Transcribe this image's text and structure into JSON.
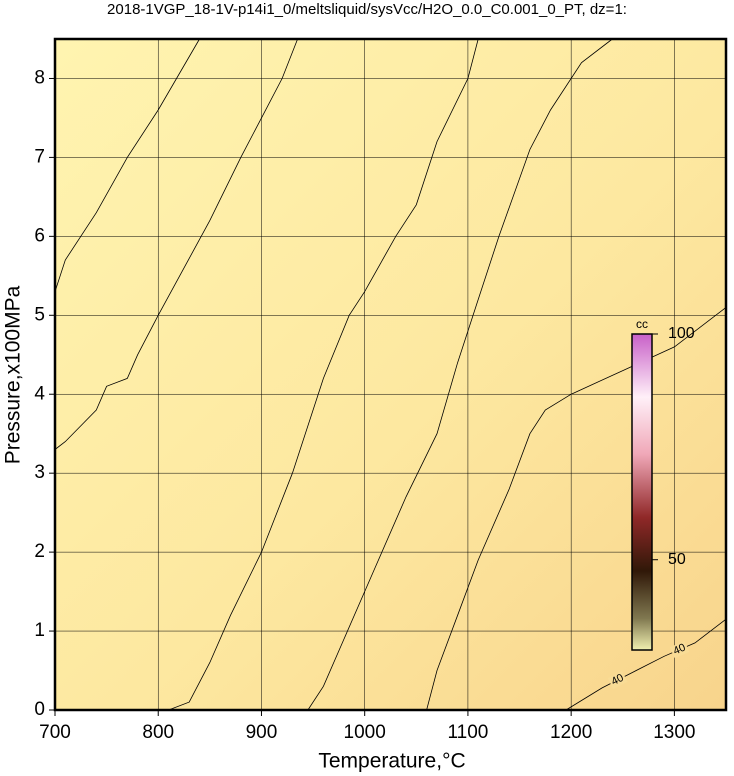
{
  "chart_data": {
    "type": "contour",
    "title": "2018-1VGP_18-1V-p14i1_0/meltsliquid/sysVcc/H2O_0.0_C0.001_0_PT, dz=1:",
    "x_label": "Temperature,°C",
    "y_label": "Pressure,x100MPa",
    "xlim": [
      700,
      1350
    ],
    "ylim": [
      0,
      8.5
    ],
    "xticks": [
      700,
      800,
      900,
      1000,
      1100,
      1200,
      1300
    ],
    "yticks": [
      0,
      1,
      2,
      3,
      4,
      5,
      6,
      7,
      8
    ],
    "grid": true,
    "contours": [
      {
        "x": [
          700,
          710,
          740,
          770,
          800,
          840
        ],
        "y": [
          5.3,
          5.7,
          6.3,
          7.0,
          7.6,
          8.5
        ]
      },
      {
        "x": [
          700,
          710,
          740,
          750,
          770,
          780,
          800,
          850,
          880,
          900,
          920,
          935
        ],
        "y": [
          3.3,
          3.4,
          3.8,
          4.1,
          4.2,
          4.5,
          5.0,
          6.2,
          7.0,
          7.5,
          8.0,
          8.5
        ]
      },
      {
        "x": [
          810,
          830,
          850,
          870,
          900,
          930,
          960,
          985,
          1000,
          1030,
          1050,
          1070,
          1100,
          1110
        ],
        "y": [
          0,
          0.1,
          0.6,
          1.2,
          2.0,
          3.0,
          4.2,
          5.0,
          5.3,
          6.0,
          6.4,
          7.2,
          8.0,
          8.5
        ]
      },
      {
        "x": [
          945,
          960,
          980,
          1010,
          1040,
          1070,
          1090,
          1110,
          1130,
          1160,
          1180,
          1210,
          1240
        ],
        "y": [
          0,
          0.3,
          0.9,
          1.8,
          2.7,
          3.5,
          4.4,
          5.2,
          6.0,
          7.1,
          7.6,
          8.2,
          8.5
        ]
      },
      {
        "x": [
          1060,
          1070,
          1090,
          1110,
          1140,
          1160,
          1175,
          1200,
          1250,
          1300,
          1350
        ],
        "y": [
          0,
          0.5,
          1.2,
          1.9,
          2.8,
          3.5,
          3.8,
          4.0,
          4.3,
          4.6,
          5.1
        ]
      },
      {
        "x": [
          1195,
          1210,
          1230,
          1260,
          1290,
          1320,
          1350
        ],
        "y": [
          0,
          0.12,
          0.28,
          0.48,
          0.68,
          0.85,
          1.15
        ],
        "bold": true,
        "labels": [
          "40",
          "40"
        ]
      }
    ],
    "colorbar": {
      "label": "cc",
      "clim": [
        30,
        100
      ],
      "ticks": [
        50,
        100
      ]
    }
  }
}
